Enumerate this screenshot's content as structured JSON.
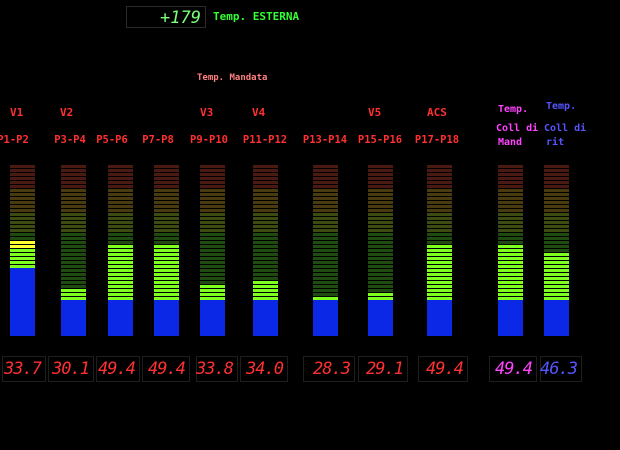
{
  "external": {
    "value": "+179",
    "label": "Temp. ESTERNA"
  },
  "mandata_label": "Temp. Mandata",
  "valve_labels": [
    "V1",
    "V2",
    "V3",
    "V4",
    "V5",
    "ACS"
  ],
  "temp_labels": {
    "mand_title": "Temp.",
    "mand_sub1": "Coll di",
    "mand_sub2": "Mand",
    "rit_title": "Temp.",
    "rit_sub1": "Coll di",
    "rit_sub2": "rit"
  },
  "colors": {
    "red_text": "#ff3030",
    "magenta": "#ff44ff",
    "blue_text": "#5555ff",
    "bar_blue": "#0b28e6"
  },
  "gauges": [
    {
      "id": "p1-p2",
      "label": "P1-P2",
      "value": "33.7",
      "level": 0.56,
      "blue": 0.4,
      "yellow": true
    },
    {
      "id": "p3-p4",
      "label": "P3-P4",
      "value": "30.1",
      "level": 0.27,
      "blue": 0.2
    },
    {
      "id": "p5-p6",
      "label": "P5-P6",
      "value": "49.4",
      "level": 0.53,
      "blue": 0.2
    },
    {
      "id": "p7-p8",
      "label": "P7-P8",
      "value": "49.4",
      "level": 0.53,
      "blue": 0.2
    },
    {
      "id": "p9-p10",
      "label": "P9-P10",
      "value": "33.8",
      "level": 0.31,
      "blue": 0.2
    },
    {
      "id": "p11-p12",
      "label": "P11-P12",
      "value": "34.0",
      "level": 0.32,
      "blue": 0.2
    },
    {
      "id": "p13-p14",
      "label": "P13-P14",
      "value": "28.3",
      "level": 0.24,
      "blue": 0.2
    },
    {
      "id": "p15-p16",
      "label": "P15-P16",
      "value": "29.1",
      "level": 0.25,
      "blue": 0.2
    },
    {
      "id": "acs",
      "label": "P17-P18",
      "value": "49.4",
      "level": 0.53,
      "blue": 0.2
    },
    {
      "id": "coll-mand",
      "label": "",
      "value": "49.4",
      "level": 0.53,
      "blue": 0.2,
      "valueColor": "magenta"
    },
    {
      "id": "coll-rit",
      "label": "",
      "value": "46.3",
      "level": 0.49,
      "blue": 0.2,
      "valueColor": "blue"
    }
  ]
}
